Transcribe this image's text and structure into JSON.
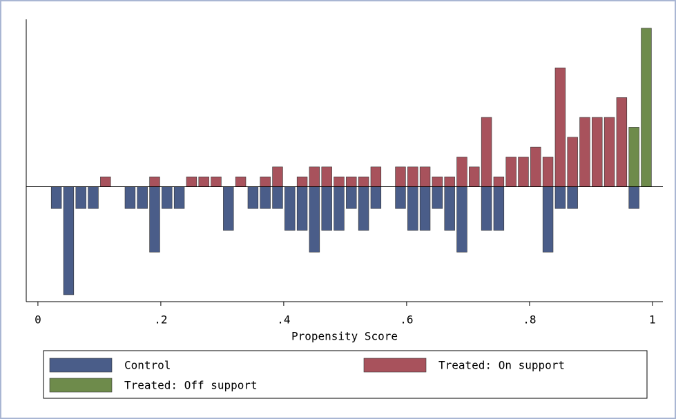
{
  "chart_data": {
    "type": "mirrored-histogram",
    "x_label": "Propensity Score",
    "bins": [
      0,
      0.02,
      0.04,
      0.06,
      0.08,
      0.1,
      0.12,
      0.14,
      0.16,
      0.18,
      0.2,
      0.22,
      0.24,
      0.26,
      0.28,
      0.3,
      0.32,
      0.34,
      0.36,
      0.38,
      0.4,
      0.42,
      0.44,
      0.46,
      0.48,
      0.5,
      0.52,
      0.54,
      0.56,
      0.58,
      0.6,
      0.62,
      0.64,
      0.66,
      0.68,
      0.7,
      0.72,
      0.74,
      0.76,
      0.78,
      0.8,
      0.82,
      0.84,
      0.86,
      0.88,
      0.9,
      0.92,
      0.94,
      0.96,
      0.98,
      1
    ],
    "series": [
      {
        "name": "Control",
        "color": "#4a5d89",
        "values": [
          0,
          -2.2,
          -10.9,
          -2.2,
          -2.2,
          0,
          0,
          -2.2,
          -2.2,
          -6.6,
          -2.2,
          -2.2,
          0,
          0,
          0,
          -4.4,
          0,
          -2.2,
          -2.2,
          -2.2,
          -4.4,
          -4.4,
          -6.6,
          -4.4,
          -4.4,
          -2.2,
          -4.4,
          -2.2,
          0,
          -2.2,
          -4.4,
          -4.4,
          -2.2,
          -4.4,
          -6.6,
          0,
          -4.4,
          -4.4,
          0,
          0,
          0,
          -6.6,
          -2.2,
          -2.2,
          0,
          0,
          0,
          0,
          -2.2,
          0
        ]
      },
      {
        "name": "Treated: On support",
        "color": "#a8525c",
        "values": [
          0,
          0,
          0,
          0,
          0,
          1,
          0,
          0,
          0,
          1,
          0,
          0,
          1,
          1,
          1,
          0,
          1,
          0,
          1,
          2,
          0,
          1,
          2,
          2,
          1,
          1,
          1,
          2,
          0,
          2,
          2,
          2,
          1,
          1,
          3,
          2,
          7,
          1,
          3,
          3,
          4,
          3,
          12,
          5,
          7,
          7,
          7,
          9,
          0,
          0
        ]
      },
      {
        "name": "Treated: Off support",
        "color": "#6e8b4b",
        "values": [
          0,
          0,
          0,
          0,
          0,
          0,
          0,
          0,
          0,
          0,
          0,
          0,
          0,
          0,
          0,
          0,
          0,
          0,
          0,
          0,
          0,
          0,
          0,
          0,
          0,
          0,
          0,
          0,
          0,
          0,
          0,
          0,
          0,
          0,
          0,
          0,
          0,
          0,
          0,
          0,
          0,
          0,
          0,
          0,
          0,
          0,
          0,
          0,
          6,
          16
        ]
      }
    ],
    "xlim": [
      -0.019,
      1.017
    ],
    "xticks": [
      0,
      {
        "value": 0.2,
        "label": ".2"
      },
      {
        "value": 0.4,
        "label": ".4"
      },
      {
        "value": 0.6,
        "label": ".6"
      },
      {
        "value": 0.8,
        "label": ".8"
      },
      1
    ],
    "ylim": [
      -11.6,
      16.9
    ]
  }
}
